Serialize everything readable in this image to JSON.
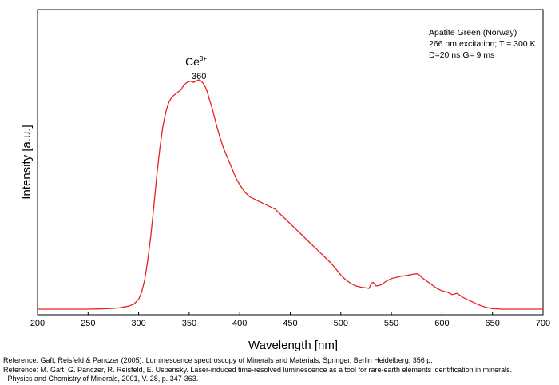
{
  "chart_data": {
    "type": "line",
    "title": "",
    "xlabel": "Wavelength [nm]",
    "ylabel": "Intensity [a.u.]",
    "xlim": [
      200,
      700
    ],
    "ylim": [
      0,
      1.05
    ],
    "x_ticks": [
      200,
      250,
      300,
      350,
      400,
      450,
      500,
      550,
      600,
      650,
      700
    ],
    "y_ticks_shown": false,
    "grid": false,
    "legend": "none",
    "series": [
      {
        "color": "#e8211c",
        "x": [
          200,
          250,
          270,
          280,
          290,
          295,
          300,
          303,
          306,
          309,
          312,
          315,
          318,
          321,
          324,
          327,
          330,
          333,
          336,
          339,
          342,
          345,
          348,
          351,
          354,
          357,
          360,
          362,
          364,
          366,
          368,
          370,
          373,
          376,
          380,
          384,
          388,
          392,
          396,
          400,
          405,
          410,
          415,
          420,
          425,
          430,
          435,
          440,
          445,
          450,
          455,
          460,
          465,
          470,
          475,
          480,
          485,
          490,
          495,
          500,
          505,
          510,
          515,
          520,
          525,
          528,
          530,
          532,
          535,
          540,
          545,
          550,
          555,
          560,
          565,
          570,
          575,
          578,
          580,
          585,
          590,
          595,
          600,
          605,
          610,
          615,
          620,
          625,
          630,
          635,
          640,
          645,
          650,
          660,
          680,
          700
        ],
        "y": [
          0.0,
          0.0,
          0.002,
          0.005,
          0.012,
          0.02,
          0.04,
          0.07,
          0.12,
          0.2,
          0.3,
          0.42,
          0.55,
          0.66,
          0.75,
          0.81,
          0.85,
          0.87,
          0.88,
          0.89,
          0.9,
          0.92,
          0.93,
          0.935,
          0.93,
          0.935,
          0.94,
          0.935,
          0.925,
          0.91,
          0.89,
          0.86,
          0.82,
          0.77,
          0.71,
          0.66,
          0.62,
          0.58,
          0.54,
          0.51,
          0.48,
          0.46,
          0.45,
          0.44,
          0.43,
          0.42,
          0.41,
          0.39,
          0.37,
          0.35,
          0.33,
          0.31,
          0.29,
          0.27,
          0.25,
          0.23,
          0.21,
          0.19,
          0.165,
          0.14,
          0.12,
          0.105,
          0.095,
          0.09,
          0.087,
          0.085,
          0.105,
          0.11,
          0.095,
          0.1,
          0.115,
          0.125,
          0.13,
          0.135,
          0.138,
          0.142,
          0.145,
          0.14,
          0.13,
          0.115,
          0.1,
          0.085,
          0.075,
          0.07,
          0.06,
          0.065,
          0.05,
          0.04,
          0.03,
          0.02,
          0.012,
          0.006,
          0.002,
          0.0,
          0.0,
          0.0
        ]
      }
    ],
    "annotations": {
      "peak_ion": "Ce",
      "peak_ion_superscript": "3+",
      "peak_wavelength": "360",
      "peak_x": 360,
      "info_lines": [
        "Apatite Green (Norway)",
        "266 nm excitation; T = 300 K",
        "D=20 ns G= 9 ms"
      ]
    }
  },
  "references": [
    "Reference: Gaft, Reisfeld & Panczer (2005): Luminescence spectroscopy of Minerals and Materials, Springer, Berlin Heidelberg, 356 p.",
    "Reference: M. Gaft, G. Panczer, R. Reisfeld, E. Uspensky. Laser-induced time-resolved luminescence as a tool for rare-earth elements identification in minerals.",
    "- Physics and Chemistry of Minerals, 2001, V. 28, p. 347-363."
  ]
}
